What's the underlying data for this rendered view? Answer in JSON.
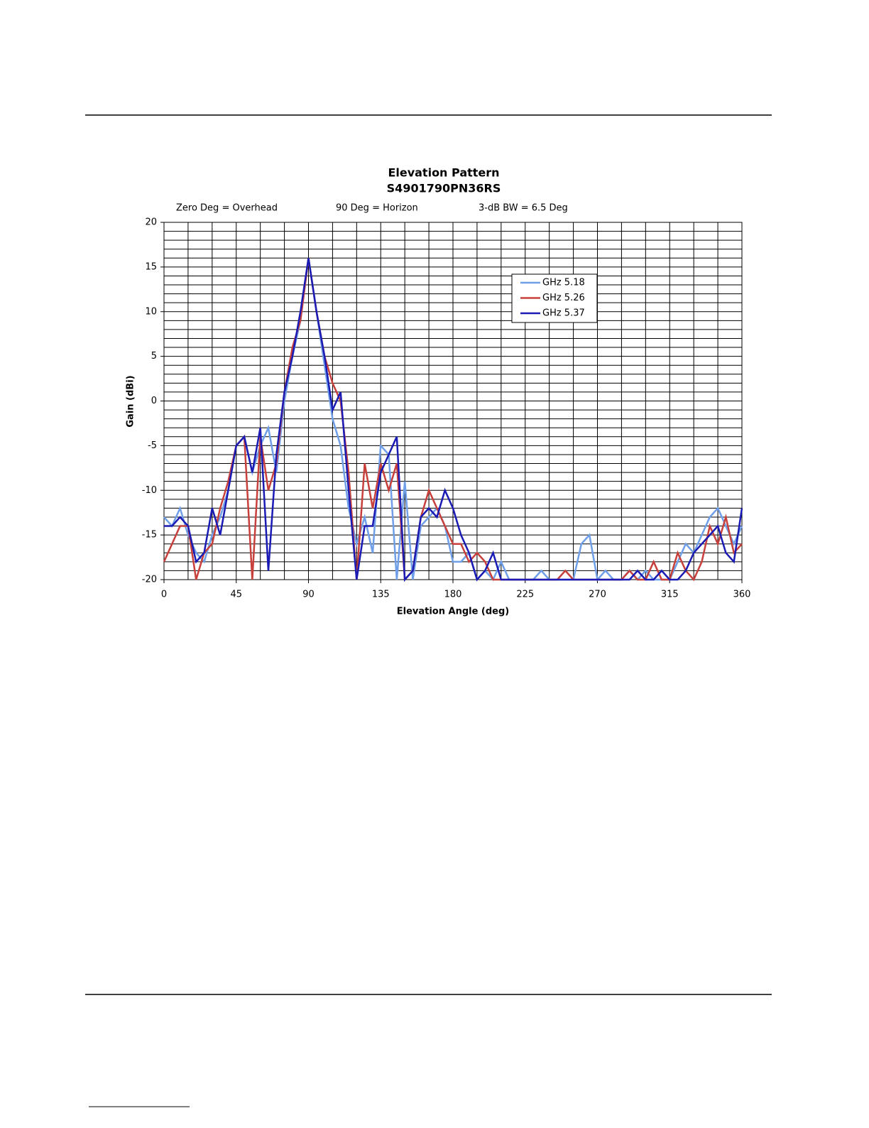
{
  "chart_data": {
    "type": "line",
    "title": "Elevation Pattern",
    "subtitle": "S4901790PN36RS",
    "annotations": [
      "Zero Deg = Overhead",
      "90 Deg = Horizon",
      "3-dB BW = 6.5 Deg"
    ],
    "x_label": "Elevation Angle (deg)",
    "y_label": "Gain (dBi)",
    "x": [
      0,
      5,
      10,
      15,
      20,
      25,
      30,
      35,
      40,
      45,
      50,
      55,
      60,
      65,
      70,
      75,
      80,
      85,
      90,
      95,
      100,
      105,
      110,
      115,
      120,
      125,
      130,
      135,
      140,
      145,
      150,
      155,
      160,
      165,
      170,
      175,
      180,
      185,
      190,
      195,
      200,
      205,
      210,
      215,
      220,
      225,
      230,
      235,
      240,
      245,
      250,
      255,
      260,
      265,
      270,
      275,
      280,
      285,
      290,
      295,
      300,
      305,
      310,
      315,
      320,
      325,
      330,
      335,
      340,
      345,
      350,
      355,
      360
    ],
    "series": [
      {
        "name": "GHz 5.18",
        "color": "#6f9fe8",
        "values": [
          -13,
          -14,
          -12,
          -15,
          -17,
          -18,
          -15,
          -13,
          -10,
          -5,
          -4,
          -8,
          -5,
          -3,
          -8,
          0,
          5,
          9,
          16,
          10,
          4,
          -2,
          -5,
          -12,
          -16,
          -13,
          -17,
          -5,
          -6,
          -20,
          -9,
          -20,
          -14,
          -13,
          -12,
          -14,
          -18,
          -18,
          -17,
          -20,
          -19,
          -20,
          -18,
          -20,
          -20,
          -20,
          -20,
          -19,
          -20,
          -20,
          -20,
          -20,
          -16,
          -15,
          -20,
          -19,
          -20,
          -20,
          -19,
          -20,
          -19,
          -20,
          -20,
          -20,
          -18,
          -16,
          -17,
          -15,
          -13,
          -12,
          -14,
          -16,
          -14
        ]
      },
      {
        "name": "GHz 5.26",
        "color": "#c8403c",
        "values": [
          -18,
          -16,
          -14,
          -14,
          -20,
          -17,
          -16,
          -12,
          -9,
          -5,
          -4,
          -20,
          -4,
          -10,
          -7,
          1,
          6,
          9,
          16,
          10,
          5,
          2,
          0,
          -8,
          -20,
          -7,
          -12,
          -7,
          -10,
          -7,
          -20,
          -19,
          -13,
          -10,
          -12,
          -14,
          -16,
          -16,
          -18,
          -17,
          -18,
          -20,
          -20,
          -20,
          -20,
          -20,
          -20,
          -20,
          -20,
          -20,
          -19,
          -20,
          -20,
          -20,
          -20,
          -20,
          -20,
          -20,
          -19,
          -20,
          -20,
          -18,
          -20,
          -20,
          -17,
          -19,
          -20,
          -18,
          -14,
          -16,
          -13,
          -17,
          -16
        ]
      },
      {
        "name": "GHz 5.37",
        "color": "#1a1ab4",
        "values": [
          -14,
          -14,
          -13,
          -14,
          -18,
          -17,
          -12,
          -15,
          -10,
          -5,
          -4,
          -8,
          -3,
          -19,
          -6,
          1,
          5,
          10,
          16,
          10,
          5,
          -1,
          1,
          -10,
          -20,
          -14,
          -14,
          -8,
          -6,
          -4,
          -20,
          -19,
          -13,
          -12,
          -13,
          -10,
          -12,
          -15,
          -17,
          -20,
          -19,
          -17,
          -20,
          -20,
          -20,
          -20,
          -20,
          -20,
          -20,
          -20,
          -20,
          -20,
          -20,
          -20,
          -20,
          -20,
          -20,
          -20,
          -20,
          -19,
          -20,
          -20,
          -19,
          -20,
          -20,
          -19,
          -17,
          -16,
          -15,
          -14,
          -17,
          -18,
          -12
        ]
      }
    ],
    "xlim": [
      0,
      360
    ],
    "xticks": [
      0,
      45,
      90,
      135,
      180,
      225,
      270,
      315,
      360
    ],
    "ylim": [
      -20,
      20
    ],
    "yticks": [
      -20,
      -15,
      -10,
      -5,
      0,
      5,
      10,
      15,
      20
    ],
    "grid": {
      "x": 15,
      "y": 1
    },
    "legend": "upper right"
  }
}
